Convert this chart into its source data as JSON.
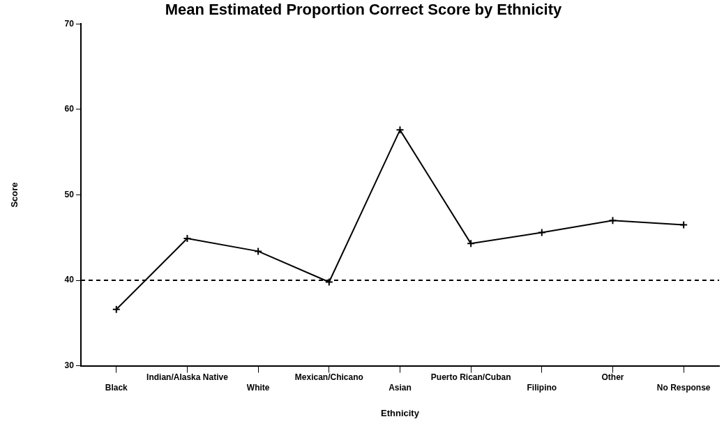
{
  "chart_data": {
    "type": "line",
    "title": "Mean Estimated Proportion Correct Score by Ethnicity",
    "xlabel": "Ethnicity",
    "ylabel": "Score",
    "categories": [
      "Black",
      "Indian/Alaska Native",
      "White",
      "Mexican/Chicano",
      "Asian",
      "Puerto Rican/Cuban",
      "Filipino",
      "Other",
      "No Response"
    ],
    "series": [
      {
        "color": "#000000",
        "values": [
          36.6,
          44.9,
          43.4,
          39.8,
          57.6,
          44.3,
          45.6,
          47.0,
          46.5
        ]
      }
    ],
    "ylim": [
      30,
      70
    ],
    "yticks": [
      30,
      40,
      50,
      60,
      70
    ],
    "grid": false,
    "legend": false,
    "marker": "cross",
    "line_style": "solid",
    "ref_lines": [
      {
        "axis": "y",
        "value": 40,
        "color": "#000000",
        "line_style": "dashed"
      }
    ]
  }
}
